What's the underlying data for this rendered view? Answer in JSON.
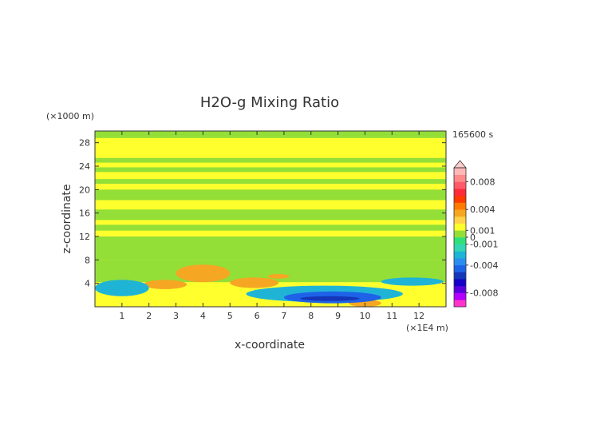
{
  "chart_data": {
    "type": "heatmap",
    "title": "H2O-g Mixing Ratio",
    "xlabel": "x-coordinate",
    "ylabel": "z-coordinate",
    "x_unit": "(×1E4 m)",
    "y_unit": "(×1000 m)",
    "time_label": "165600 s",
    "xlim": [
      0,
      13
    ],
    "ylim": [
      0,
      30
    ],
    "x_ticks": [
      1,
      2,
      3,
      4,
      5,
      6,
      7,
      8,
      9,
      10,
      11,
      12
    ],
    "y_ticks": [
      4,
      8,
      12,
      16,
      20,
      24,
      28
    ],
    "grid": false,
    "background_level": "yellow (≈ 0 to 0.001)",
    "bands": [
      {
        "z": [
          28.8,
          30.0
        ],
        "color": "#93df37"
      },
      {
        "z": [
          24.6,
          25.4
        ],
        "color": "#93df37"
      },
      {
        "z": [
          23.0,
          23.8
        ],
        "color": "#93df37"
      },
      {
        "z": [
          21.0,
          21.8
        ],
        "color": "#93df37"
      },
      {
        "z": [
          18.2,
          20.0
        ],
        "color": "#93df37"
      },
      {
        "z": [
          14.8,
          16.6
        ],
        "color": "#93df37"
      },
      {
        "z": [
          13.0,
          14.0
        ],
        "color": "#93df37"
      },
      {
        "z": [
          8.0,
          12.0
        ],
        "color": "#93df37"
      },
      {
        "z": [
          4.2,
          8.0
        ],
        "color": "#93df37"
      }
    ],
    "regions": [
      {
        "x": [
          3.0,
          5.0
        ],
        "z": [
          4.2,
          7.2
        ],
        "color": "#f5a623",
        "desc": "positive anomaly"
      },
      {
        "x": [
          5.0,
          6.8
        ],
        "z": [
          3.2,
          5.0
        ],
        "color": "#f5a623"
      },
      {
        "x": [
          1.8,
          3.4
        ],
        "z": [
          3.0,
          4.6
        ],
        "color": "#f5a623"
      },
      {
        "x": [
          6.4,
          7.2
        ],
        "z": [
          4.8,
          5.6
        ],
        "color": "#f5a623"
      },
      {
        "x": [
          9.4,
          10.6
        ],
        "z": [
          0.0,
          1.2
        ],
        "color": "#f5a623"
      },
      {
        "x": [
          0.0,
          2.0
        ],
        "z": [
          1.8,
          4.6
        ],
        "color": "#1fb4d6"
      },
      {
        "x": [
          5.6,
          11.4
        ],
        "z": [
          0.8,
          3.6
        ],
        "color": "#1fb4d6"
      },
      {
        "x": [
          7.0,
          10.6
        ],
        "z": [
          0.6,
          2.6
        ],
        "color": "#1e62e8"
      },
      {
        "x": [
          7.6,
          9.8
        ],
        "z": [
          1.0,
          1.8
        ],
        "color": "#1436b8"
      },
      {
        "x": [
          10.6,
          12.9
        ],
        "z": [
          3.6,
          5.0
        ],
        "color": "#1fb4d6"
      }
    ],
    "colorbar": {
      "labels": [
        "0.008",
        "0.004",
        "0.001",
        "0",
        "-0.001",
        "-0.004",
        "-0.008"
      ],
      "label_values": [
        0.008,
        0.004,
        0.001,
        0.0,
        -0.001,
        -0.004,
        -0.008
      ],
      "range": [
        -0.01,
        0.01
      ],
      "colors": [
        "#ff33cc",
        "#b400ff",
        "#5a00e0",
        "#1400c8",
        "#1436b8",
        "#1e62e8",
        "#2a8ef0",
        "#1fb4d6",
        "#33d6b0",
        "#2fe07a",
        "#93df37",
        "#ffff2e",
        "#ffd24a",
        "#f5a623",
        "#ff7a00",
        "#ff3a00",
        "#ff2a3a",
        "#ff5a6a",
        "#ff8a8a",
        "#ffb8b8"
      ],
      "over_arrow_color": "#ffcccc"
    }
  }
}
